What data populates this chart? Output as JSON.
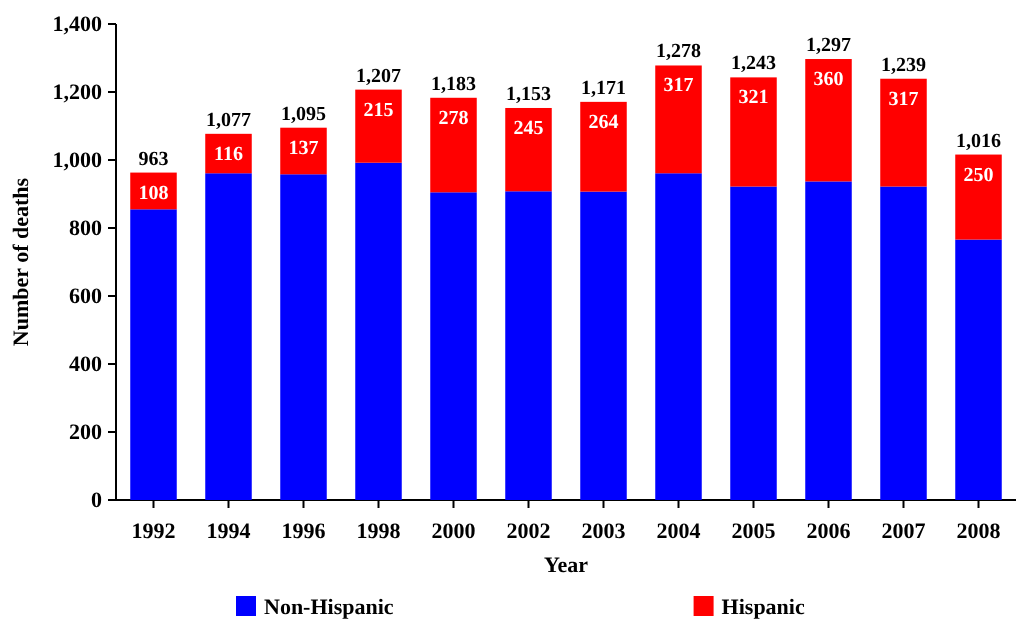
{
  "chart_data": {
    "type": "bar",
    "stacked": true,
    "xlabel": "Year",
    "ylabel": "Number of deaths",
    "categories": [
      "1992",
      "1994",
      "1996",
      "1998",
      "2000",
      "2002",
      "2003",
      "2004",
      "2005",
      "2006",
      "2007",
      "2008"
    ],
    "series": [
      {
        "name": "Non-Hispanic",
        "color": "#0000ff",
        "values": [
          855,
          961,
          958,
          992,
          905,
          908,
          907,
          961,
          922,
          937,
          922,
          766
        ]
      },
      {
        "name": "Hispanic",
        "color": "#ff0000",
        "values": [
          108,
          116,
          137,
          215,
          278,
          245,
          264,
          317,
          321,
          360,
          317,
          250
        ],
        "value_labels": [
          "108",
          "116",
          "137",
          "215",
          "278",
          "245",
          "264",
          "317",
          "321",
          "360",
          "317",
          "250"
        ]
      }
    ],
    "totals": [
      "963",
      "1,077",
      "1,095",
      "1,207",
      "1,183",
      "1,153",
      "1,171",
      "1,278",
      "1,243",
      "1,297",
      "1,239",
      "1,016"
    ],
    "ylim": [
      0,
      1400
    ],
    "yticks": [
      {
        "value": 0,
        "label": "0"
      },
      {
        "value": 200,
        "label": "200"
      },
      {
        "value": 400,
        "label": "400"
      },
      {
        "value": 600,
        "label": "600"
      },
      {
        "value": 800,
        "label": "800"
      },
      {
        "value": 1000,
        "label": "1,000"
      },
      {
        "value": 1200,
        "label": "1,200"
      },
      {
        "value": 1400,
        "label": "1,400"
      }
    ],
    "grid": false,
    "legend": "bottom"
  }
}
